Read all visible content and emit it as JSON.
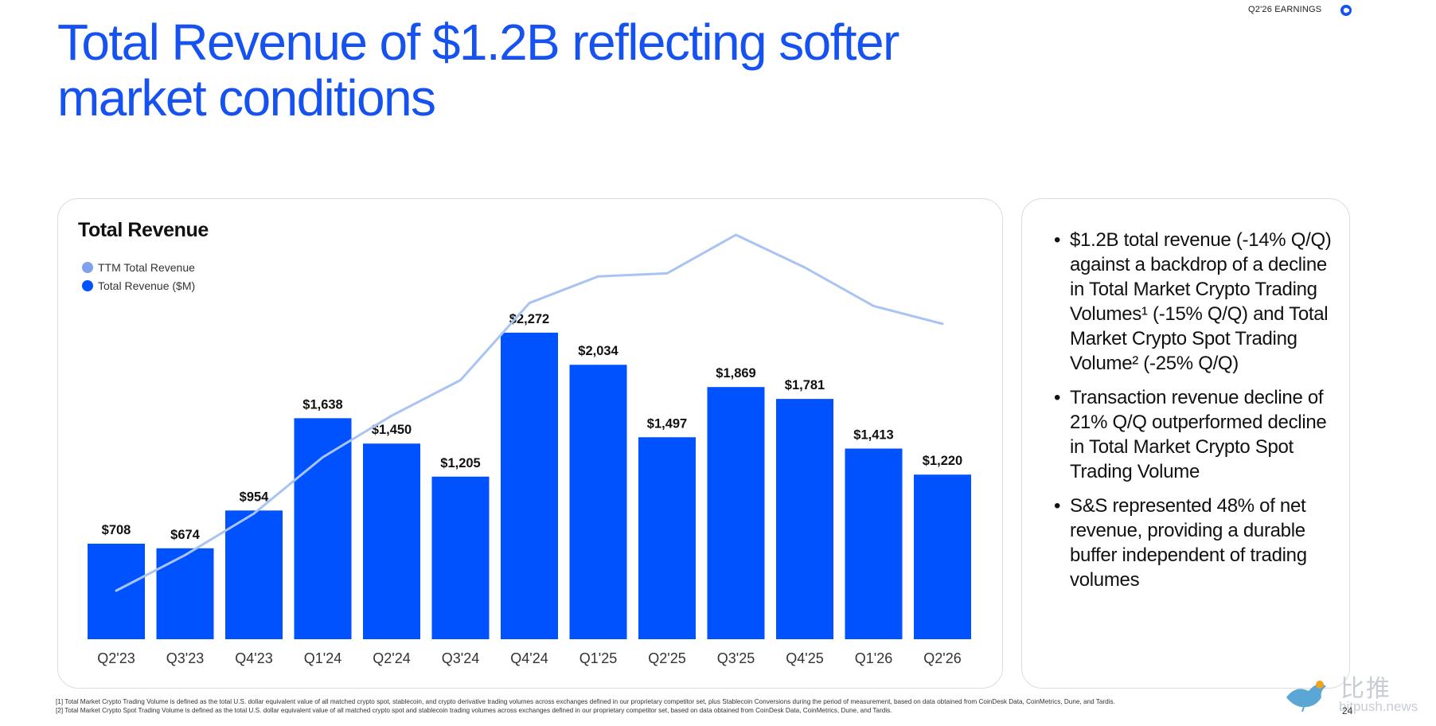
{
  "header": {
    "tag": "Q2'26 EARNINGS"
  },
  "title": "Total Revenue of $1.2B reflecting softer market conditions",
  "chart_data": {
    "type": "bar",
    "title": "Total Revenue",
    "categories": [
      "Q2'23",
      "Q3'23",
      "Q4'23",
      "Q1'24",
      "Q2'24",
      "Q3'24",
      "Q4'24",
      "Q1'25",
      "Q2'25",
      "Q3'25",
      "Q4'25",
      "Q1'26",
      "Q2'26"
    ],
    "series": [
      {
        "name": "Total Revenue ($M)",
        "type": "bar",
        "color": "#0052ff",
        "values": [
          708,
          674,
          954,
          1638,
          1450,
          1205,
          2272,
          2034,
          1497,
          1869,
          1781,
          1413,
          1220
        ],
        "labels": [
          "$708",
          "$674",
          "$954",
          "$1,638",
          "$1,450",
          "$1,205",
          "$2,272",
          "$2,034",
          "$1,497",
          "$1,869",
          "$1,781",
          "$1,413",
          "$1,220"
        ]
      },
      {
        "name": "TTM Total Revenue",
        "type": "line",
        "color": "#a9c4f2",
        "values": [
          3100,
          3700,
          4400,
          5350,
          6050,
          6650,
          7950,
          8400,
          8450,
          9100,
          8550,
          7900,
          7600
        ]
      }
    ],
    "legend": "top-left",
    "grid": false
  },
  "bullets": [
    "$1.2B total revenue (-14% Q/Q) against a backdrop of a decline in Total Market Crypto Trading Volumes¹ (-15% Q/Q) and Total Market Crypto Spot Trading Volume² (-25% Q/Q)",
    "Transaction revenue decline of 21% Q/Q outperformed decline in Total Market Crypto Spot Trading Volume",
    "S&S represented 48% of net revenue, providing a durable buffer independent of trading volumes"
  ],
  "footnotes": [
    "[1] Total Market Crypto Trading Volume is defined as the total U.S. dollar equivalent value of all matched crypto spot, stablecoin, and crypto derivative trading volumes across exchanges defined in our proprietary competitor set, plus Stablecoin Conversions during the period of measurement, based on data obtained from CoinDesk Data, CoinMetrics, Dune, and Tardis.",
    "[2] Total Market Crypto Spot Trading Volume is defined as the total U.S. dollar equivalent value of all matched crypto spot and stablecoin trading volumes across exchanges defined in our proprietary competitor set, based on data obtained from CoinDesk Data, CoinMetrics, Dune, and Tardis."
  ],
  "page_number": "24",
  "watermark": {
    "cn": "比推",
    "en": "bitpush.news"
  },
  "colors": {
    "brand": "#1652f0",
    "bar": "#0052ff",
    "line": "#a9c4f2"
  }
}
